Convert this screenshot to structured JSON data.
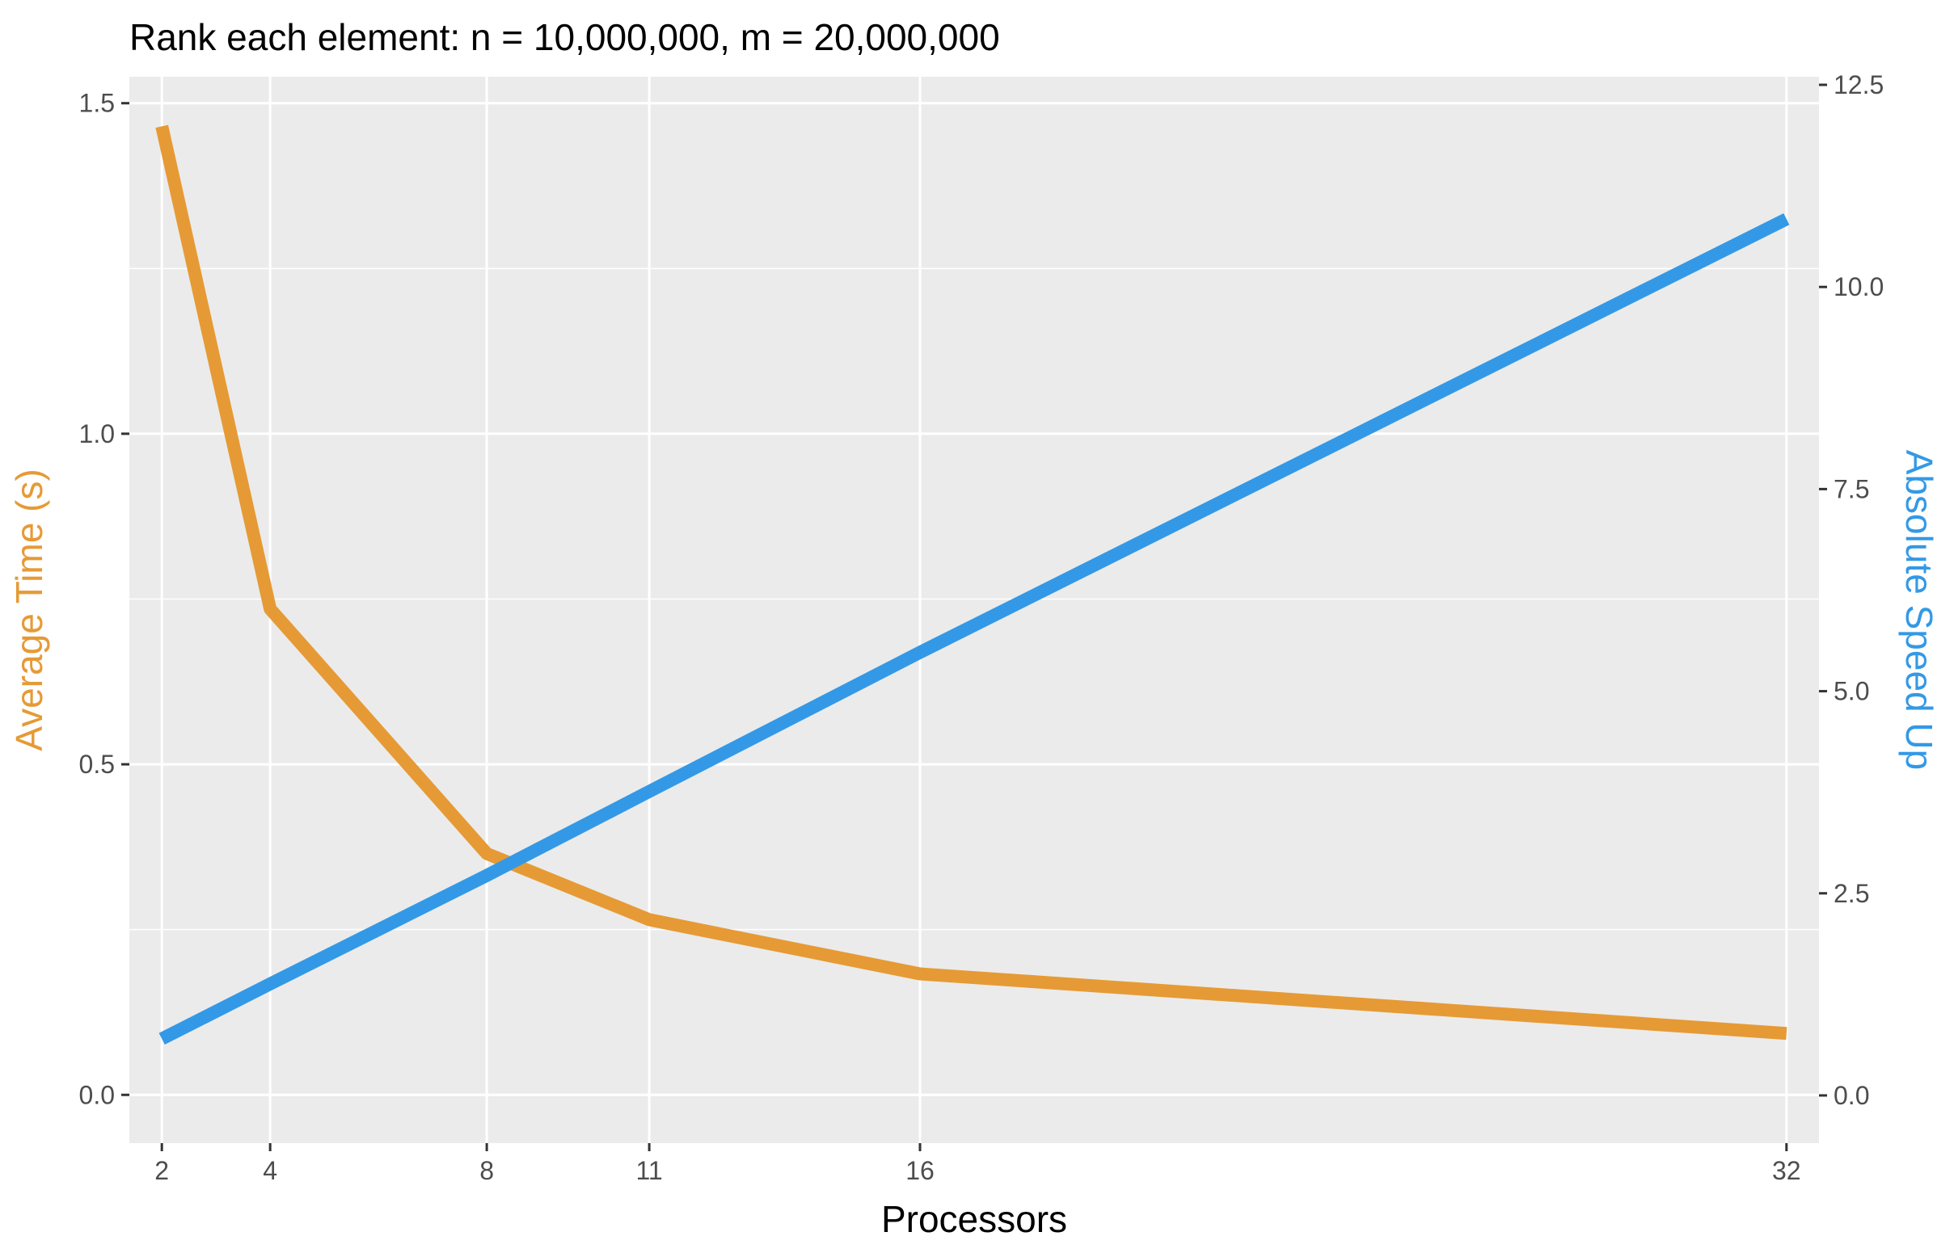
{
  "chart_data": {
    "type": "line",
    "title": "Rank each element: n = 10,000,000, m = 20,000,000",
    "xlabel": "Processors",
    "ylabel": "Average Time (s)",
    "y2label": "Absolute Speed Up",
    "x": [
      2,
      4,
      8,
      11,
      16,
      32
    ],
    "x_ticks": [
      "2",
      "4",
      "8",
      "11",
      "16",
      "32"
    ],
    "xlim": [
      1.4,
      32.6
    ],
    "ylim": [
      -0.073,
      1.54
    ],
    "y_ticks": [
      "0.0",
      "0.5",
      "1.0",
      "1.5"
    ],
    "y2lim": [
      -0.59,
      12.6
    ],
    "y2_ticks": [
      "0.0",
      "2.5",
      "5.0",
      "7.5",
      "10.0",
      "12.5"
    ],
    "grid": true,
    "series": [
      {
        "name": "Average Time (s)",
        "axis": "left",
        "color": "#E69A35",
        "values": [
          1.465,
          0.735,
          0.365,
          0.265,
          0.183,
          0.093
        ]
      },
      {
        "name": "Absolute Speed Up",
        "axis": "right",
        "color": "#3399E6",
        "values": [
          0.7,
          1.38,
          2.72,
          3.76,
          5.48,
          10.84
        ]
      }
    ],
    "colors": {
      "panel": "#EBEBEB",
      "grid": "#FFFFFF",
      "tick_label": "#4D4D4D",
      "left_axis_title": "#E69A35",
      "right_axis_title": "#3399E6"
    }
  }
}
